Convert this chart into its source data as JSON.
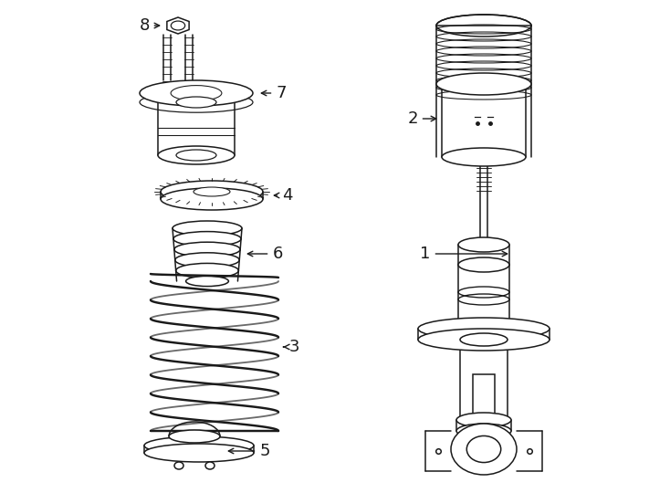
{
  "background_color": "#ffffff",
  "line_color": "#1a1a1a",
  "line_width": 1.1,
  "figure_width": 7.34,
  "figure_height": 5.4,
  "dpi": 100
}
